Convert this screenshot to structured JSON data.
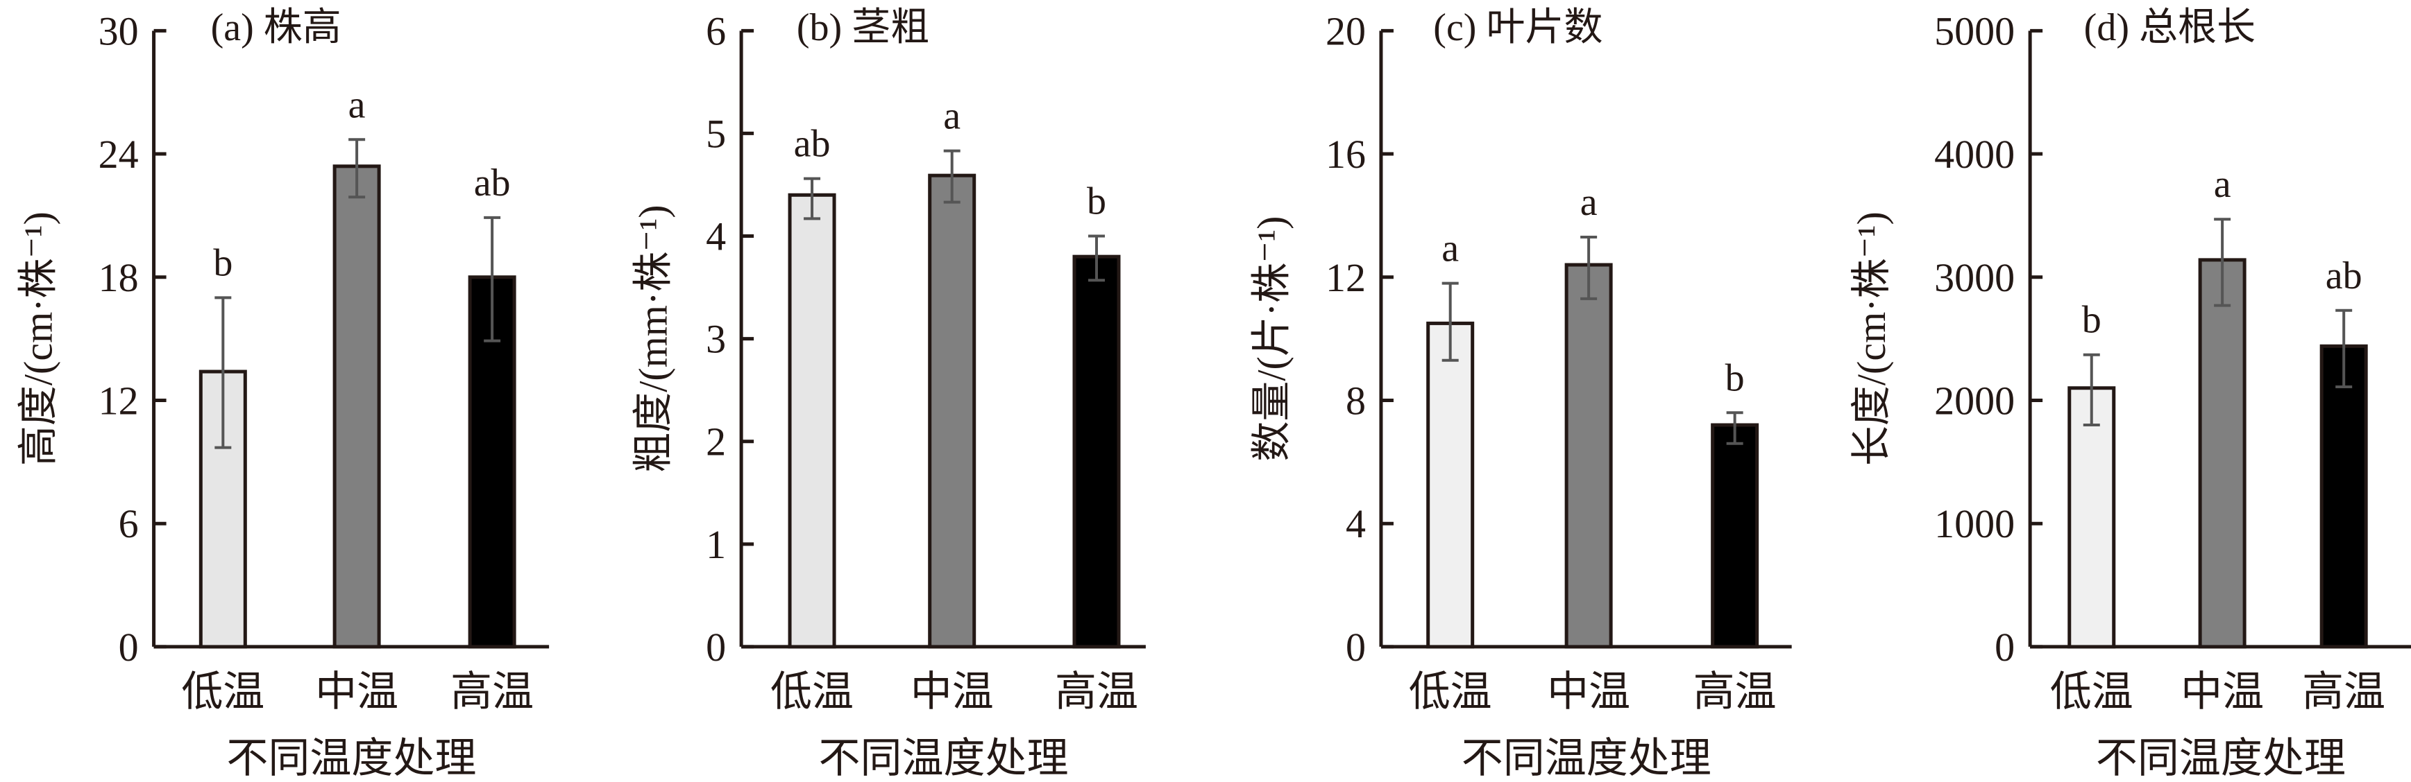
{
  "chart_data": [
    {
      "type": "bar",
      "title": "(a) 株高",
      "xlabel": "不同温度处理",
      "ylabel": "高度/(cm·株⁻¹)",
      "categories": [
        "低温",
        "中温",
        "高温"
      ],
      "values": [
        13.4,
        23.4,
        18.0
      ],
      "error": [
        [
          9.7,
          17.0
        ],
        [
          21.9,
          24.7
        ],
        [
          14.9,
          20.9
        ]
      ],
      "letters": [
        "b",
        "a",
        "ab"
      ],
      "ylim": [
        0,
        30
      ],
      "yticks": [
        "0",
        "6",
        "12",
        "18",
        "24",
        "30"
      ],
      "colors": [
        "#e6e6e6",
        "#808080",
        "#000000"
      ],
      "grid": false
    },
    {
      "type": "bar",
      "title": "(b) 茎粗",
      "xlabel": "不同温度处理",
      "ylabel": "粗度/(mm·株⁻¹)",
      "categories": [
        "低温",
        "中温",
        "高温"
      ],
      "values": [
        4.4,
        4.59,
        3.8
      ],
      "error": [
        [
          4.17,
          4.56
        ],
        [
          4.33,
          4.83
        ],
        [
          3.57,
          4.0
        ]
      ],
      "letters": [
        "ab",
        "a",
        "b"
      ],
      "ylim": [
        0,
        6
      ],
      "yticks": [
        "0",
        "1",
        "2",
        "3",
        "4",
        "5",
        "6"
      ],
      "colors": [
        "#e6e6e6",
        "#808080",
        "#000000"
      ],
      "grid": false
    },
    {
      "type": "bar",
      "title": "(c) 叶片数",
      "xlabel": "不同温度处理",
      "ylabel": "数量/(片·株⁻¹)",
      "categories": [
        "低温",
        "中温",
        "高温"
      ],
      "values": [
        10.5,
        12.4,
        7.2
      ],
      "error": [
        [
          9.3,
          11.8
        ],
        [
          11.3,
          13.3
        ],
        [
          6.6,
          7.6
        ]
      ],
      "letters": [
        "a",
        "a",
        "b"
      ],
      "ylim": [
        0,
        20
      ],
      "yticks": [
        "0",
        "4",
        "8",
        "12",
        "16",
        "20"
      ],
      "colors": [
        "#f0f0f0",
        "#808080",
        "#000000"
      ],
      "grid": false
    },
    {
      "type": "bar",
      "title": "(d) 总根长",
      "xlabel": "不同温度处理",
      "ylabel": "长度/(cm·株⁻¹)",
      "categories": [
        "低温",
        "中温",
        "高温"
      ],
      "values": [
        2100,
        3140,
        2440
      ],
      "error": [
        [
          1800,
          2370
        ],
        [
          2770,
          3470
        ],
        [
          2110,
          2730
        ]
      ],
      "letters": [
        "b",
        "a",
        "ab"
      ],
      "ylim": [
        0,
        5000
      ],
      "yticks": [
        "0",
        "1000",
        "2000",
        "3000",
        "4000",
        "5000"
      ],
      "colors": [
        "#f0f0f0",
        "#808080",
        "#000000"
      ],
      "grid": false
    }
  ]
}
